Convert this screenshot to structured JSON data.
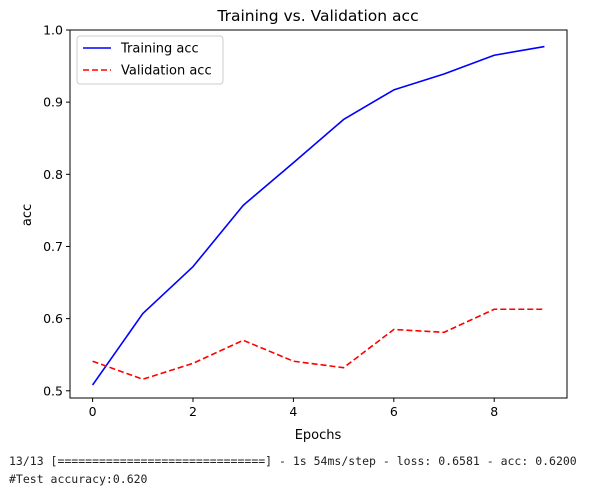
{
  "chart_data": {
    "type": "line",
    "title": "Training vs. Validation acc",
    "xlabel": "Epochs",
    "ylabel": "acc",
    "x": [
      0,
      1,
      2,
      3,
      4,
      5,
      6,
      7,
      8,
      9
    ],
    "xlim": [
      -0.45,
      9.45
    ],
    "ylim": [
      0.49,
      1.0
    ],
    "xticks": [
      0,
      2,
      4,
      6,
      8
    ],
    "yticks": [
      0.5,
      0.6,
      0.7,
      0.8,
      0.9,
      1.0
    ],
    "ytick_labels": [
      "0.5",
      "0.6",
      "0.7",
      "0.8",
      "0.9",
      "1.0"
    ],
    "grid": false,
    "legend_position": "top-left",
    "series": [
      {
        "name": "Training acc",
        "color": "#0000ff",
        "style": "solid",
        "values": [
          0.508,
          0.607,
          0.672,
          0.757,
          0.816,
          0.876,
          0.917,
          0.939,
          0.965,
          0.977
        ]
      },
      {
        "name": "Validation acc",
        "color": "#ff0000",
        "style": "dashed",
        "values": [
          0.541,
          0.516,
          0.538,
          0.57,
          0.541,
          0.532,
          0.585,
          0.581,
          0.613,
          0.613
        ]
      }
    ]
  },
  "console": {
    "line1": "13/13 [==============================] - 1s 54ms/step - loss: 0.6581 - acc: 0.6200",
    "line2": "#Test accuracy:0.620"
  }
}
